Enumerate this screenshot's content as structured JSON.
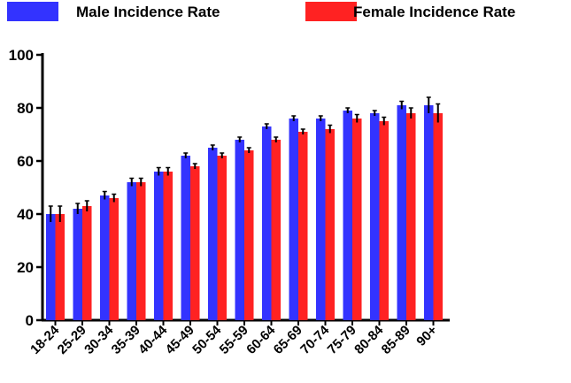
{
  "chart_data": {
    "type": "bar",
    "categories": [
      "18-24",
      "25-29",
      "30-34",
      "35-39",
      "40-44",
      "45-49",
      "50-54",
      "55-59",
      "60-64",
      "65-69",
      "70-74",
      "75-79",
      "80-84",
      "85-89",
      "90+"
    ],
    "series": [
      {
        "name": "Male Incidence Rate",
        "color": "#3333ff",
        "values": [
          40,
          42,
          47,
          52,
          56,
          62,
          65,
          68,
          73,
          76,
          76,
          79,
          78,
          81,
          81
        ],
        "errors": [
          3,
          2,
          1.5,
          1.5,
          1.5,
          1,
          1,
          1,
          1,
          1,
          1,
          1,
          1,
          1.5,
          3
        ]
      },
      {
        "name": "Female Incidence Rate",
        "color": "#ff2222",
        "values": [
          40,
          43,
          46,
          52,
          56,
          58,
          62,
          64,
          68,
          71,
          72,
          76,
          75,
          78,
          78
        ],
        "errors": [
          3,
          2,
          1.5,
          1.5,
          1.5,
          1,
          1,
          1,
          1,
          1,
          1.5,
          1.5,
          1.5,
          2,
          3.5
        ]
      }
    ],
    "title": "",
    "xlabel": "",
    "ylabel": "",
    "ylim": [
      0,
      100
    ],
    "yticks": [
      0,
      20,
      40,
      60,
      80,
      100
    ],
    "grid": false,
    "legend": "top",
    "error_bars": true
  }
}
